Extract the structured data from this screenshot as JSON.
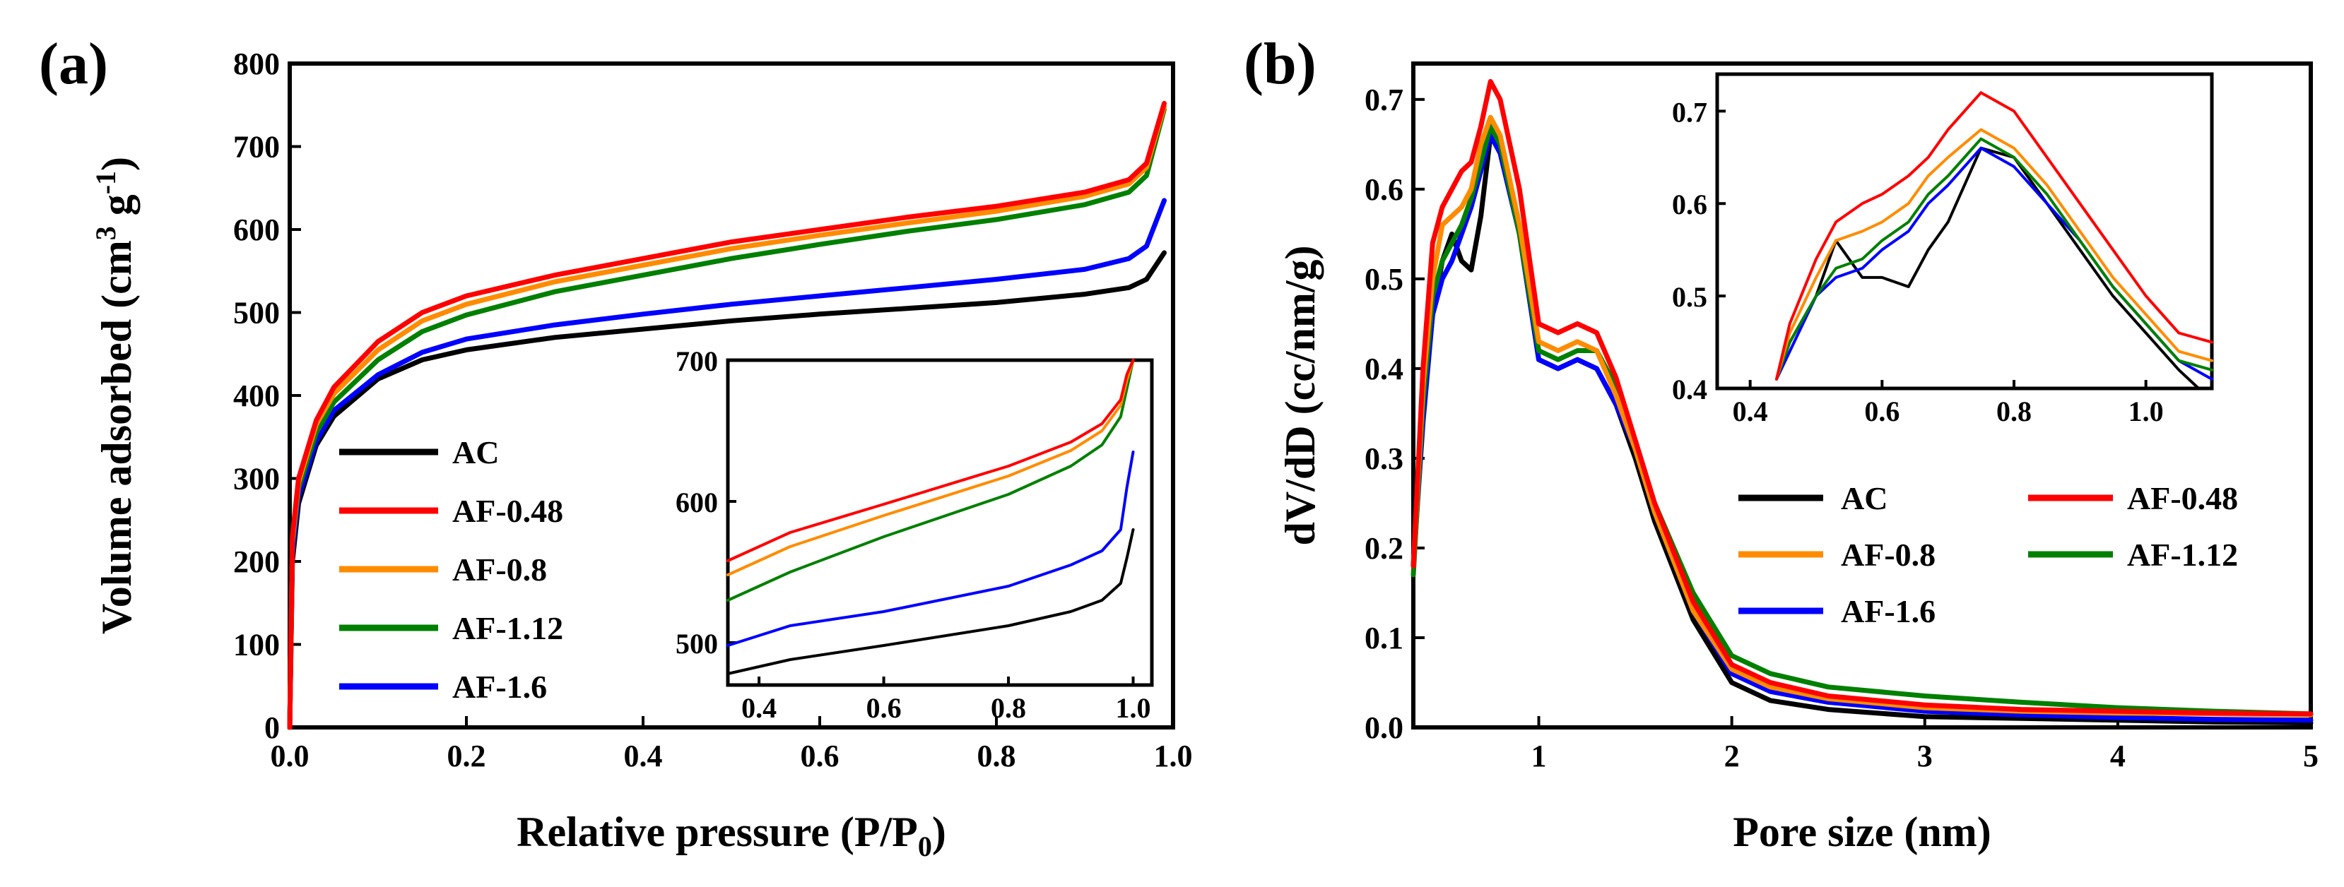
{
  "colors": {
    "AC": "#000000",
    "AF-0.48": "#ff0000",
    "AF-0.8": "#ff8c00",
    "AF-1.12": "#008000",
    "AF-1.6": "#0000ff"
  },
  "panels": {
    "a": {
      "label": "(a)",
      "xlabel": "Relative pressure (P/P",
      "xlabel_sub": "0",
      "xlabel_end": ")",
      "ylabel": "Volume adsorbed (cm",
      "ylabel_sup1": "3",
      "ylabel_mid": " g",
      "ylabel_sup2": "-1",
      "ylabel_end": ")"
    },
    "b": {
      "label": "(b)",
      "xlabel": "Pore size (nm)",
      "ylabel": "dV/dD (cc/nm/g)"
    }
  },
  "legend": [
    "AC",
    "AF-0.48",
    "AF-0.8",
    "AF-1.12",
    "AF-1.6"
  ],
  "chart_data": [
    {
      "id": "a-main",
      "type": "line",
      "title": "(a)",
      "xlabel": "Relative pressure (P/P0)",
      "ylabel": "Volume adsorbed (cm3 g-1)",
      "xlim": [
        0,
        1.0
      ],
      "ylim": [
        0,
        800
      ],
      "xticks": [
        "0.0",
        "0.2",
        "0.4",
        "0.6",
        "0.8",
        "1.0"
      ],
      "xtick_values": [
        0,
        0.2,
        0.4,
        0.6,
        0.8,
        1.0
      ],
      "yticks": [
        "0",
        "100",
        "200",
        "300",
        "400",
        "500",
        "600",
        "700",
        "800"
      ],
      "ytick_values": [
        0,
        100,
        200,
        300,
        400,
        500,
        600,
        700,
        800
      ],
      "series": [
        {
          "name": "AC",
          "x": [
            0,
            0.003,
            0.01,
            0.03,
            0.05,
            0.1,
            0.15,
            0.2,
            0.3,
            0.4,
            0.5,
            0.6,
            0.7,
            0.8,
            0.9,
            0.95,
            0.97,
            0.99
          ],
          "y": [
            0,
            200,
            270,
            340,
            375,
            420,
            443,
            455,
            470,
            480,
            490,
            498,
            505,
            512,
            522,
            530,
            540,
            572
          ]
        },
        {
          "name": "AF-0.48",
          "x": [
            0,
            0.003,
            0.01,
            0.03,
            0.05,
            0.1,
            0.15,
            0.2,
            0.3,
            0.4,
            0.5,
            0.6,
            0.7,
            0.8,
            0.9,
            0.95,
            0.97,
            0.99
          ],
          "y": [
            0,
            230,
            300,
            370,
            410,
            465,
            500,
            520,
            545,
            565,
            585,
            600,
            615,
            628,
            645,
            660,
            680,
            752
          ]
        },
        {
          "name": "AF-0.8",
          "x": [
            0,
            0.003,
            0.01,
            0.03,
            0.05,
            0.1,
            0.15,
            0.2,
            0.3,
            0.4,
            0.5,
            0.6,
            0.7,
            0.8,
            0.9,
            0.95,
            0.97,
            0.99
          ],
          "y": [
            0,
            225,
            295,
            365,
            402,
            455,
            490,
            510,
            537,
            557,
            577,
            593,
            608,
            622,
            640,
            655,
            675,
            748
          ]
        },
        {
          "name": "AF-1.12",
          "x": [
            0,
            0.003,
            0.01,
            0.03,
            0.05,
            0.1,
            0.15,
            0.2,
            0.3,
            0.4,
            0.5,
            0.6,
            0.7,
            0.8,
            0.9,
            0.95,
            0.97,
            0.99
          ],
          "y": [
            0,
            220,
            288,
            355,
            392,
            443,
            477,
            497,
            525,
            545,
            565,
            582,
            598,
            612,
            630,
            645,
            665,
            745
          ]
        },
        {
          "name": "AF-1.6",
          "x": [
            0,
            0.003,
            0.01,
            0.03,
            0.05,
            0.1,
            0.15,
            0.2,
            0.3,
            0.4,
            0.5,
            0.6,
            0.7,
            0.8,
            0.9,
            0.95,
            0.97,
            0.99
          ],
          "y": [
            0,
            210,
            278,
            345,
            382,
            425,
            452,
            468,
            485,
            498,
            510,
            520,
            530,
            540,
            552,
            565,
            580,
            635
          ]
        }
      ]
    },
    {
      "id": "a-inset",
      "type": "line",
      "xlim": [
        0.35,
        1.03
      ],
      "ylim": [
        470,
        700
      ],
      "xticks": [
        "0.4",
        "0.6",
        "0.8",
        "1.0"
      ],
      "xtick_values": [
        0.4,
        0.6,
        0.8,
        1.0
      ],
      "yticks": [
        "500",
        "600",
        "700"
      ],
      "ytick_values": [
        500,
        600,
        700
      ],
      "series": [
        {
          "name": "AC",
          "x": [
            0.35,
            0.45,
            0.6,
            0.8,
            0.9,
            0.95,
            0.98,
            0.99,
            1.0
          ],
          "y": [
            478,
            488,
            498,
            512,
            522,
            530,
            542,
            560,
            580
          ]
        },
        {
          "name": "AF-0.48",
          "x": [
            0.35,
            0.45,
            0.6,
            0.8,
            0.9,
            0.95,
            0.98,
            0.99,
            1.0
          ],
          "y": [
            558,
            578,
            598,
            625,
            642,
            655,
            672,
            690,
            700
          ]
        },
        {
          "name": "AF-0.8",
          "x": [
            0.35,
            0.45,
            0.6,
            0.8,
            0.9,
            0.95,
            0.98,
            0.99,
            1.0
          ],
          "y": [
            548,
            568,
            590,
            618,
            636,
            650,
            668,
            686,
            700
          ]
        },
        {
          "name": "AF-1.12",
          "x": [
            0.35,
            0.45,
            0.6,
            0.8,
            0.9,
            0.95,
            0.98,
            0.99,
            1.0
          ],
          "y": [
            530,
            550,
            575,
            605,
            625,
            640,
            660,
            680,
            700
          ]
        },
        {
          "name": "AF-1.6",
          "x": [
            0.35,
            0.45,
            0.6,
            0.8,
            0.9,
            0.95,
            0.98,
            0.99,
            1.0
          ],
          "y": [
            498,
            512,
            522,
            540,
            555,
            565,
            580,
            610,
            635
          ]
        }
      ]
    },
    {
      "id": "b-main",
      "type": "line",
      "title": "(b)",
      "xlabel": "Pore size (nm)",
      "ylabel": "dV/dD (cc/nm/g)",
      "xlim": [
        0.35,
        5
      ],
      "ylim": [
        0,
        0.74
      ],
      "xticks": [
        "1",
        "2",
        "3",
        "4",
        "5"
      ],
      "xtick_values": [
        1,
        2,
        3,
        4,
        5
      ],
      "yticks": [
        "0.0",
        "0.1",
        "0.2",
        "0.3",
        "0.4",
        "0.5",
        "0.6",
        "0.7"
      ],
      "ytick_values": [
        0,
        0.1,
        0.2,
        0.3,
        0.4,
        0.5,
        0.6,
        0.7
      ],
      "series": [
        {
          "name": "AC",
          "x": [
            0.35,
            0.4,
            0.45,
            0.5,
            0.55,
            0.6,
            0.65,
            0.7,
            0.75,
            0.8,
            0.9,
            1.0,
            1.1,
            1.2,
            1.3,
            1.4,
            1.5,
            1.6,
            1.8,
            2.0,
            2.2,
            2.5,
            3.0,
            3.5,
            4.0,
            4.5,
            5.0
          ],
          "y": [
            0.18,
            0.35,
            0.46,
            0.52,
            0.55,
            0.52,
            0.51,
            0.57,
            0.66,
            0.65,
            0.55,
            0.41,
            0.4,
            0.41,
            0.4,
            0.36,
            0.3,
            0.23,
            0.12,
            0.05,
            0.03,
            0.02,
            0.012,
            0.01,
            0.008,
            0.006,
            0.005
          ]
        },
        {
          "name": "AF-0.48",
          "x": [
            0.35,
            0.4,
            0.45,
            0.5,
            0.55,
            0.6,
            0.65,
            0.7,
            0.75,
            0.8,
            0.9,
            1.0,
            1.1,
            1.2,
            1.3,
            1.4,
            1.5,
            1.6,
            1.8,
            2.0,
            2.2,
            2.5,
            3.0,
            3.5,
            4.0,
            4.5,
            5.0
          ],
          "y": [
            0.18,
            0.4,
            0.54,
            0.58,
            0.6,
            0.62,
            0.63,
            0.67,
            0.72,
            0.7,
            0.6,
            0.45,
            0.44,
            0.45,
            0.44,
            0.39,
            0.32,
            0.25,
            0.14,
            0.07,
            0.05,
            0.035,
            0.025,
            0.02,
            0.018,
            0.016,
            0.015
          ]
        },
        {
          "name": "AF-0.8",
          "x": [
            0.35,
            0.4,
            0.45,
            0.5,
            0.55,
            0.6,
            0.65,
            0.7,
            0.75,
            0.8,
            0.9,
            1.0,
            1.1,
            1.2,
            1.3,
            1.4,
            1.5,
            1.6,
            1.8,
            2.0,
            2.2,
            2.5,
            3.0,
            3.5,
            4.0,
            4.5,
            5.0
          ],
          "y": [
            0.18,
            0.38,
            0.5,
            0.56,
            0.57,
            0.58,
            0.6,
            0.65,
            0.68,
            0.66,
            0.56,
            0.43,
            0.42,
            0.43,
            0.42,
            0.37,
            0.31,
            0.24,
            0.13,
            0.065,
            0.045,
            0.032,
            0.022,
            0.018,
            0.016,
            0.015,
            0.014
          ]
        },
        {
          "name": "AF-1.12",
          "x": [
            0.35,
            0.4,
            0.45,
            0.5,
            0.55,
            0.6,
            0.65,
            0.7,
            0.75,
            0.8,
            0.9,
            1.0,
            1.1,
            1.2,
            1.3,
            1.4,
            1.5,
            1.6,
            1.8,
            2.0,
            2.2,
            2.5,
            3.0,
            3.5,
            4.0,
            4.5,
            5.0
          ],
          "y": [
            0.17,
            0.36,
            0.48,
            0.52,
            0.54,
            0.56,
            0.59,
            0.63,
            0.67,
            0.65,
            0.55,
            0.42,
            0.41,
            0.42,
            0.42,
            0.38,
            0.32,
            0.25,
            0.15,
            0.08,
            0.06,
            0.045,
            0.035,
            0.028,
            0.022,
            0.018,
            0.015
          ]
        },
        {
          "name": "AF-1.6",
          "x": [
            0.35,
            0.4,
            0.45,
            0.5,
            0.55,
            0.6,
            0.65,
            0.7,
            0.75,
            0.8,
            0.9,
            1.0,
            1.1,
            1.2,
            1.3,
            1.4,
            1.5,
            1.6,
            1.8,
            2.0,
            2.2,
            2.5,
            3.0,
            3.5,
            4.0,
            4.5,
            5.0
          ],
          "y": [
            0.18,
            0.34,
            0.46,
            0.5,
            0.52,
            0.55,
            0.58,
            0.62,
            0.66,
            0.64,
            0.55,
            0.41,
            0.4,
            0.41,
            0.4,
            0.36,
            0.31,
            0.24,
            0.13,
            0.06,
            0.04,
            0.028,
            0.018,
            0.014,
            0.011,
            0.009,
            0.008
          ]
        }
      ]
    },
    {
      "id": "b-inset",
      "type": "line",
      "xlim": [
        0.35,
        1.1
      ],
      "ylim": [
        0.4,
        0.74
      ],
      "xticks": [
        "0.4",
        "0.6",
        "0.8",
        "1.0"
      ],
      "xtick_values": [
        0.4,
        0.6,
        0.8,
        1.0
      ],
      "yticks": [
        "0.4",
        "0.5",
        "0.6",
        "0.7"
      ],
      "ytick_values": [
        0.4,
        0.5,
        0.6,
        0.7
      ],
      "series": [
        {
          "name": "AC",
          "x": [
            0.44,
            0.46,
            0.5,
            0.53,
            0.57,
            0.6,
            0.64,
            0.67,
            0.7,
            0.75,
            0.8,
            0.85,
            0.9,
            0.95,
            1.0,
            1.05,
            1.08
          ],
          "y": [
            0.41,
            0.45,
            0.5,
            0.56,
            0.52,
            0.52,
            0.51,
            0.55,
            0.58,
            0.66,
            0.65,
            0.6,
            0.55,
            0.5,
            0.46,
            0.42,
            0.4
          ]
        },
        {
          "name": "AF-0.48",
          "x": [
            0.44,
            0.46,
            0.5,
            0.53,
            0.57,
            0.6,
            0.64,
            0.67,
            0.7,
            0.75,
            0.8,
            0.85,
            0.9,
            0.95,
            1.0,
            1.05,
            1.1
          ],
          "y": [
            0.41,
            0.47,
            0.54,
            0.58,
            0.6,
            0.61,
            0.63,
            0.65,
            0.68,
            0.72,
            0.7,
            0.65,
            0.6,
            0.55,
            0.5,
            0.46,
            0.45
          ]
        },
        {
          "name": "AF-0.8",
          "x": [
            0.44,
            0.46,
            0.5,
            0.53,
            0.57,
            0.6,
            0.64,
            0.67,
            0.7,
            0.75,
            0.8,
            0.85,
            0.9,
            0.95,
            1.0,
            1.05,
            1.1
          ],
          "y": [
            0.41,
            0.46,
            0.52,
            0.56,
            0.57,
            0.58,
            0.6,
            0.63,
            0.65,
            0.68,
            0.66,
            0.62,
            0.57,
            0.52,
            0.48,
            0.44,
            0.43
          ]
        },
        {
          "name": "AF-1.12",
          "x": [
            0.44,
            0.46,
            0.5,
            0.53,
            0.57,
            0.6,
            0.64,
            0.67,
            0.7,
            0.75,
            0.8,
            0.85,
            0.9,
            0.95,
            1.0,
            1.05,
            1.1
          ],
          "y": [
            0.41,
            0.45,
            0.5,
            0.53,
            0.54,
            0.56,
            0.58,
            0.61,
            0.63,
            0.67,
            0.65,
            0.61,
            0.56,
            0.51,
            0.47,
            0.43,
            0.42
          ]
        },
        {
          "name": "AF-1.6",
          "x": [
            0.44,
            0.46,
            0.5,
            0.53,
            0.57,
            0.6,
            0.64,
            0.67,
            0.7,
            0.75,
            0.8,
            0.85,
            0.9,
            0.95,
            1.0,
            1.05,
            1.1
          ],
          "y": [
            0.41,
            0.44,
            0.5,
            0.52,
            0.53,
            0.55,
            0.57,
            0.6,
            0.62,
            0.66,
            0.64,
            0.6,
            0.56,
            0.51,
            0.47,
            0.43,
            0.41
          ]
        }
      ]
    }
  ]
}
